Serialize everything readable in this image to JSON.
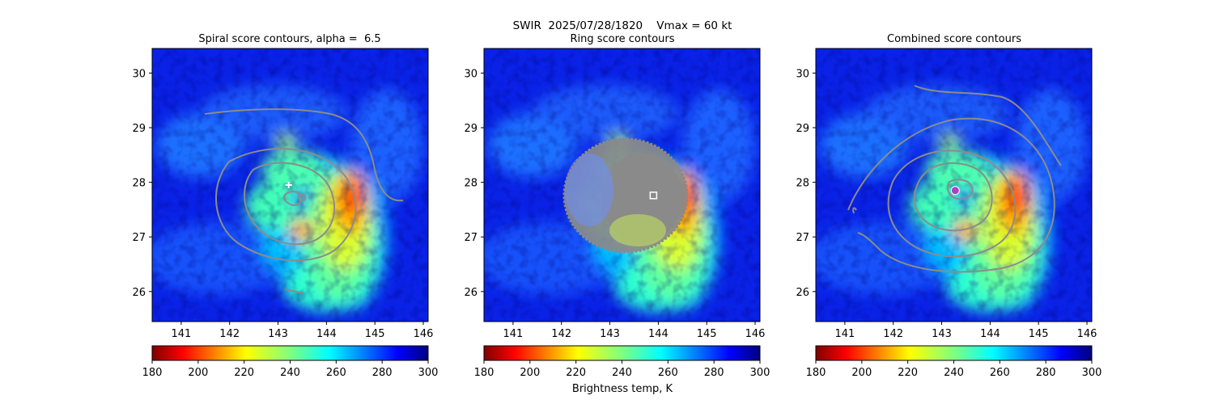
{
  "suptitle": "SWIR  2025/07/28/1820    Vmax = 60 kt",
  "colorbar": {
    "label": "Brightness temp, K",
    "ticks": [
      180,
      200,
      220,
      240,
      260,
      280,
      300
    ],
    "range": [
      180,
      300
    ],
    "colormap": "jet_r"
  },
  "chart_data": [
    {
      "type": "heatmap",
      "title": "Spiral score contours, alpha =  6.5",
      "xticks": [
        141,
        142,
        143,
        144,
        145,
        146
      ],
      "yticks": [
        26,
        27,
        28,
        29,
        30
      ],
      "xlim": [
        140.4,
        146.1
      ],
      "ylim": [
        25.45,
        30.45
      ],
      "center_marker": {
        "x": 143.5,
        "y": 27.72,
        "style": "gray-circle"
      },
      "first_guess": {
        "x": 143.22,
        "y": 27.95,
        "style": "white-plus"
      }
    },
    {
      "type": "heatmap",
      "title": "Ring score contours",
      "xticks": [
        141,
        142,
        143,
        144,
        145,
        146
      ],
      "yticks": [
        26,
        27,
        28,
        29,
        30
      ],
      "xlim": [
        140.4,
        146.1
      ],
      "ylim": [
        25.45,
        30.45
      ],
      "center_marker": {
        "x": 143.9,
        "y": 27.76,
        "style": "white-square"
      }
    },
    {
      "type": "heatmap",
      "title": "Combined score contours",
      "xticks": [
        141,
        142,
        143,
        144,
        145,
        146
      ],
      "yticks": [
        26,
        27,
        28,
        29,
        30
      ],
      "xlim": [
        140.4,
        146.1
      ],
      "ylim": [
        25.45,
        30.45
      ],
      "center_marker": {
        "x": 143.28,
        "y": 27.85,
        "style": "purple-dot"
      }
    }
  ]
}
